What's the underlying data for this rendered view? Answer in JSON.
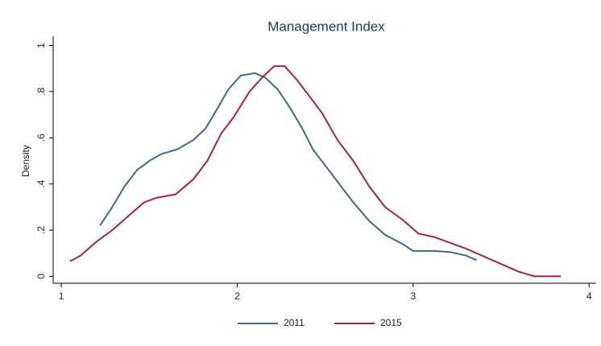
{
  "chart_data": {
    "type": "line",
    "title": "Management Index",
    "y_label": "Density",
    "xlim": [
      0.954,
      4.04
    ],
    "ylim": [
      -0.03,
      1.04
    ],
    "xticks": [
      1,
      2,
      3,
      4
    ],
    "yticks": [
      0,
      {
        "value": 0.2,
        "label": ".2"
      },
      {
        "value": 0.4,
        "label": ".4"
      },
      {
        "value": 0.6,
        "label": ".6"
      },
      {
        "value": 0.8,
        "label": ".8"
      },
      1
    ],
    "legend": "bottom",
    "series": [
      {
        "name": "2011",
        "color": "#3e6a8a",
        "x": [
          1.22,
          1.29,
          1.36,
          1.43,
          1.5,
          1.57,
          1.66,
          1.75,
          1.82,
          1.89,
          1.95,
          2.02,
          2.1,
          2.16,
          2.23,
          2.3,
          2.37,
          2.43,
          2.5,
          2.57,
          2.66,
          2.75,
          2.84,
          2.94,
          3.0,
          3.12,
          3.21,
          3.3,
          3.36
        ],
        "values": [
          0.22,
          0.3,
          0.39,
          0.46,
          0.5,
          0.53,
          0.55,
          0.59,
          0.64,
          0.73,
          0.81,
          0.87,
          0.88,
          0.86,
          0.81,
          0.73,
          0.64,
          0.55,
          0.48,
          0.41,
          0.32,
          0.24,
          0.18,
          0.14,
          0.11,
          0.11,
          0.105,
          0.09,
          0.07
        ]
      },
      {
        "name": "2015",
        "color": "#a8213f",
        "x": [
          1.05,
          1.11,
          1.2,
          1.29,
          1.38,
          1.47,
          1.54,
          1.65,
          1.75,
          1.83,
          1.91,
          1.98,
          2.07,
          2.14,
          2.21,
          2.27,
          2.34,
          2.41,
          2.48,
          2.57,
          2.66,
          2.75,
          2.84,
          2.94,
          3.03,
          3.12,
          3.21,
          3.3,
          3.39,
          3.51,
          3.6,
          3.69,
          3.84
        ],
        "values": [
          0.065,
          0.09,
          0.15,
          0.2,
          0.26,
          0.32,
          0.34,
          0.355,
          0.42,
          0.5,
          0.62,
          0.69,
          0.8,
          0.86,
          0.91,
          0.91,
          0.85,
          0.78,
          0.71,
          0.59,
          0.5,
          0.39,
          0.3,
          0.245,
          0.185,
          0.17,
          0.145,
          0.12,
          0.09,
          0.05,
          0.02,
          0,
          0
        ]
      }
    ]
  }
}
